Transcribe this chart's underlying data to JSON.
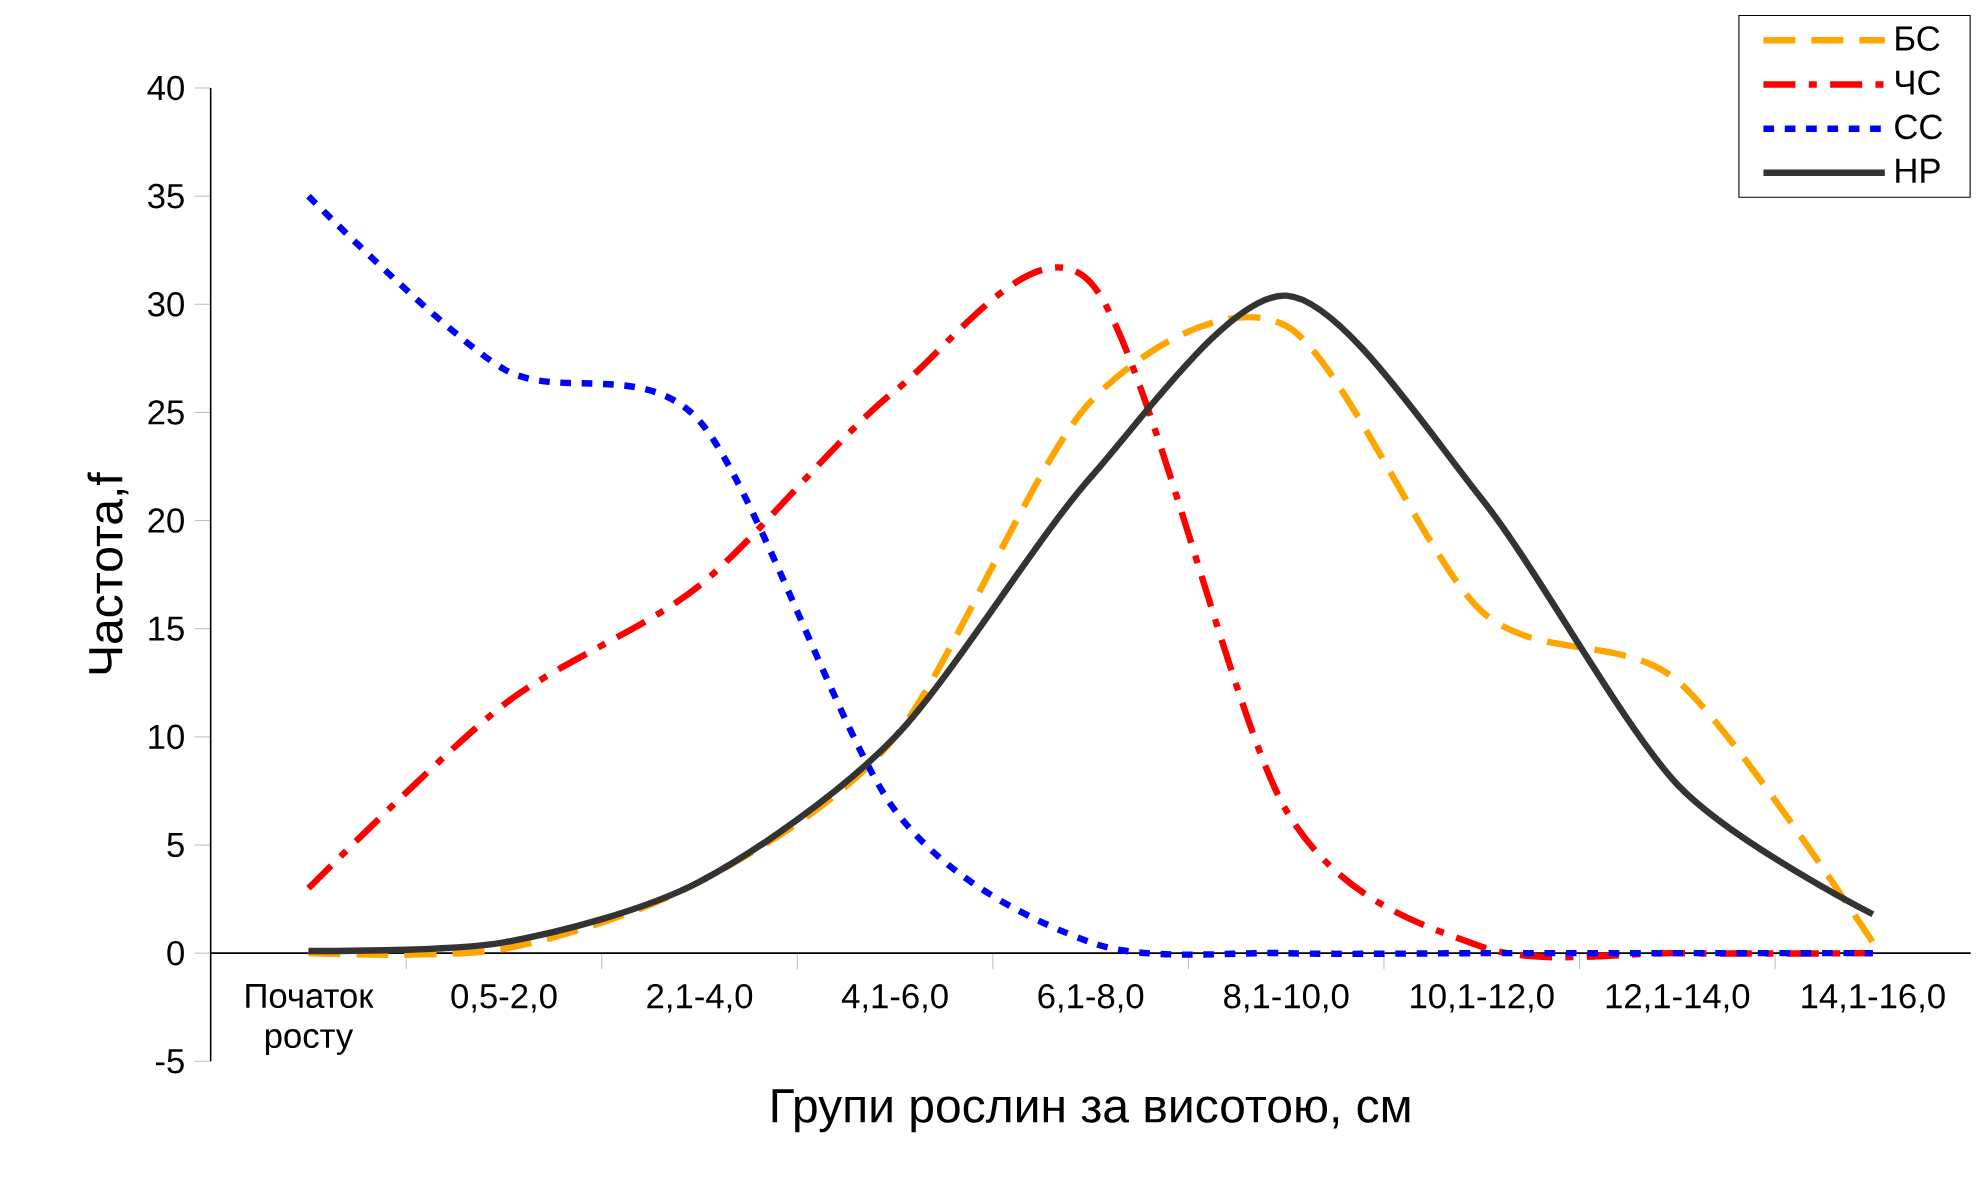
{
  "chart_data": {
    "type": "line",
    "xlabel": "Групи рослин за висотою, см",
    "ylabel": "Частота,f",
    "categories": [
      "Початок росту",
      "0,5-2,0",
      "2,1-4,0",
      "4,1-6,0",
      "6,1-8,0",
      "8,1-10,0",
      "10,1-12,0",
      "12,1-14,0",
      "14,1-16,0"
    ],
    "series": [
      {
        "name": "БС",
        "color": "#ffa500",
        "line_style": "dashed",
        "values": [
          0,
          0.2,
          3.3,
          10,
          25.5,
          29,
          15.8,
          12.6,
          0.5
        ]
      },
      {
        "name": "ЧС",
        "color": "#ff0000",
        "line_style": "dashdot",
        "values": [
          3,
          11.5,
          17,
          26,
          31,
          6.6,
          0.3,
          0,
          0
        ]
      },
      {
        "name": "СС",
        "color": "#0000ff",
        "line_style": "dotted",
        "values": [
          35,
          27,
          24.6,
          6.6,
          0.5,
          0,
          0,
          0,
          0
        ]
      },
      {
        "name": "НР",
        "color": "#333333",
        "line_style": "solid",
        "values": [
          0.1,
          0.5,
          3.3,
          10,
          22,
          30.4,
          21,
          7.8,
          1.8
        ]
      }
    ],
    "ylim": [
      -5,
      40
    ],
    "yticks": [
      -5,
      0,
      5,
      10,
      15,
      20,
      25,
      30,
      35,
      40
    ],
    "grid": false,
    "legend": "top right",
    "marker": "none"
  }
}
